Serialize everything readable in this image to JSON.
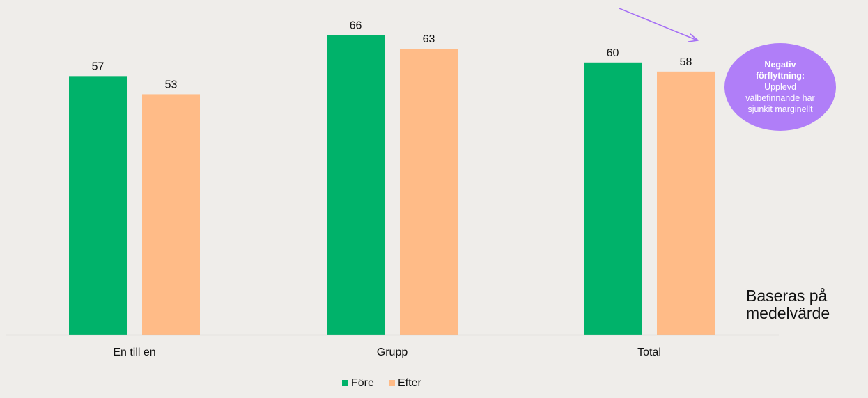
{
  "chart_data": {
    "type": "bar",
    "categories": [
      "En till en",
      "Grupp",
      "Total"
    ],
    "series": [
      {
        "name": "Före",
        "values": [
          57,
          66,
          60
        ],
        "color": "#00b26a"
      },
      {
        "name": "Efter",
        "values": [
          53,
          63,
          58
        ],
        "color": "#ffbb87"
      }
    ],
    "ylim": [
      0,
      70
    ],
    "grid": false,
    "legend_position": "bottom",
    "axis_color": "#c8c6c2"
  },
  "annotation": {
    "heading": "Negativ förflyttning:",
    "body": "Upplevd välbefinnande har sjunkit marginellt",
    "color": "#b07ef8",
    "arrow_color": "#a56ff5"
  },
  "note": "Baseras på medelvärde"
}
